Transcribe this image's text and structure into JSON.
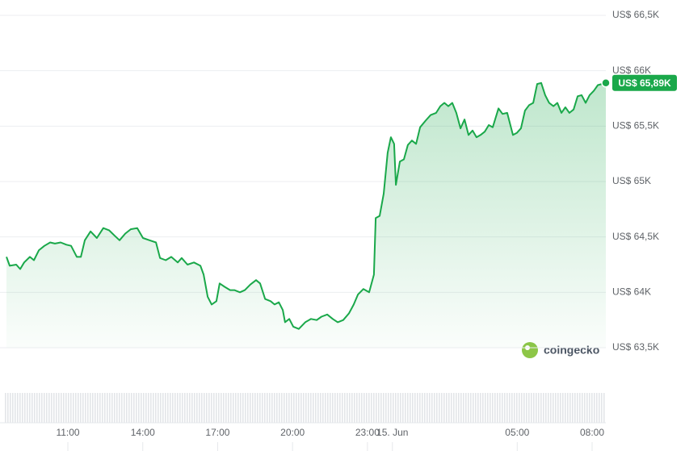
{
  "chart_data": {
    "type": "line",
    "color": "#1aa84a",
    "grid": true,
    "xlim": [
      8.54,
      32.55
    ],
    "xticks": [
      {
        "value": 11,
        "label": "11:00"
      },
      {
        "value": 14,
        "label": "14:00"
      },
      {
        "value": 17,
        "label": "17:00"
      },
      {
        "value": 20,
        "label": "20:00"
      },
      {
        "value": 23,
        "label": "23:00"
      },
      {
        "value": 24,
        "label": "15. Jun"
      },
      {
        "value": 29,
        "label": "05:00"
      },
      {
        "value": 32,
        "label": "08:00"
      }
    ],
    "ylim": [
      63500,
      66500
    ],
    "yticks": [
      {
        "value": 63500,
        "label": "US$ 63,5K"
      },
      {
        "value": 64000,
        "label": "US$ 64K"
      },
      {
        "value": 64500,
        "label": "US$ 64,5K"
      },
      {
        "value": 65000,
        "label": "US$ 65K"
      },
      {
        "value": 65500,
        "label": "US$ 65,5K"
      },
      {
        "value": 66000,
        "label": "US$ 66K"
      },
      {
        "value": 66500,
        "label": "US$ 66,5K"
      }
    ],
    "x": [
      8.54,
      8.67,
      8.93,
      9.09,
      9.25,
      9.48,
      9.64,
      9.84,
      10.06,
      10.29,
      10.48,
      10.71,
      10.94,
      11.13,
      11.36,
      11.52,
      11.68,
      11.91,
      12.16,
      12.42,
      12.65,
      12.88,
      13.07,
      13.3,
      13.52,
      13.78,
      14.01,
      14.27,
      14.53,
      14.69,
      14.92,
      15.14,
      15.4,
      15.56,
      15.79,
      16.05,
      16.31,
      16.44,
      16.6,
      16.76,
      16.95,
      17.08,
      17.28,
      17.5,
      17.67,
      17.89,
      18.09,
      18.31,
      18.54,
      18.7,
      18.9,
      19.12,
      19.28,
      19.45,
      19.61,
      19.7,
      19.87,
      20.03,
      20.25,
      20.51,
      20.74,
      20.97,
      21.16,
      21.39,
      21.61,
      21.81,
      22.03,
      22.26,
      22.45,
      22.62,
      22.84,
      23.07,
      23.26,
      23.33,
      23.49,
      23.65,
      23.81,
      23.94,
      24.07,
      24.14,
      24.3,
      24.46,
      24.62,
      24.78,
      24.95,
      25.11,
      25.33,
      25.53,
      25.75,
      25.92,
      26.08,
      26.24,
      26.4,
      26.56,
      26.73,
      26.89,
      27.05,
      27.21,
      27.37,
      27.53,
      27.7,
      27.86,
      28.02,
      28.25,
      28.41,
      28.6,
      28.83,
      28.99,
      29.15,
      29.31,
      29.48,
      29.64,
      29.8,
      29.96,
      30.12,
      30.28,
      30.45,
      30.61,
      30.77,
      30.93,
      31.09,
      31.26,
      31.42,
      31.58,
      31.74,
      31.9,
      32.07,
      32.23,
      32.39,
      32.55
    ],
    "values": [
      64320,
      64240,
      64250,
      64210,
      64270,
      64320,
      64290,
      64380,
      64420,
      64450,
      64440,
      64450,
      64430,
      64420,
      64320,
      64320,
      64470,
      64550,
      64490,
      64580,
      64560,
      64510,
      64470,
      64530,
      64570,
      64580,
      64490,
      64470,
      64450,
      64310,
      64290,
      64320,
      64270,
      64310,
      64250,
      64270,
      64240,
      64160,
      63960,
      63890,
      63920,
      64080,
      64050,
      64020,
      64020,
      64000,
      64020,
      64070,
      64110,
      64080,
      63940,
      63920,
      63890,
      63910,
      63840,
      63730,
      63760,
      63690,
      63670,
      63730,
      63760,
      63750,
      63780,
      63800,
      63760,
      63730,
      63750,
      63810,
      63890,
      63980,
      64030,
      64000,
      64160,
      64670,
      64690,
      64890,
      65260,
      65400,
      65340,
      64970,
      65180,
      65200,
      65330,
      65370,
      65340,
      65490,
      65550,
      65600,
      65620,
      65680,
      65710,
      65680,
      65710,
      65620,
      65480,
      65560,
      65420,
      65460,
      65400,
      65420,
      65450,
      65510,
      65490,
      65660,
      65610,
      65620,
      65420,
      65440,
      65480,
      65640,
      65690,
      65710,
      65880,
      65890,
      65780,
      65710,
      65680,
      65710,
      65620,
      65670,
      65620,
      65650,
      65770,
      65780,
      65710,
      65780,
      65820,
      65870,
      65880,
      65890
    ],
    "current": {
      "value": 65890,
      "label": "US$ 65,89K"
    },
    "watermark": "coingecko"
  }
}
